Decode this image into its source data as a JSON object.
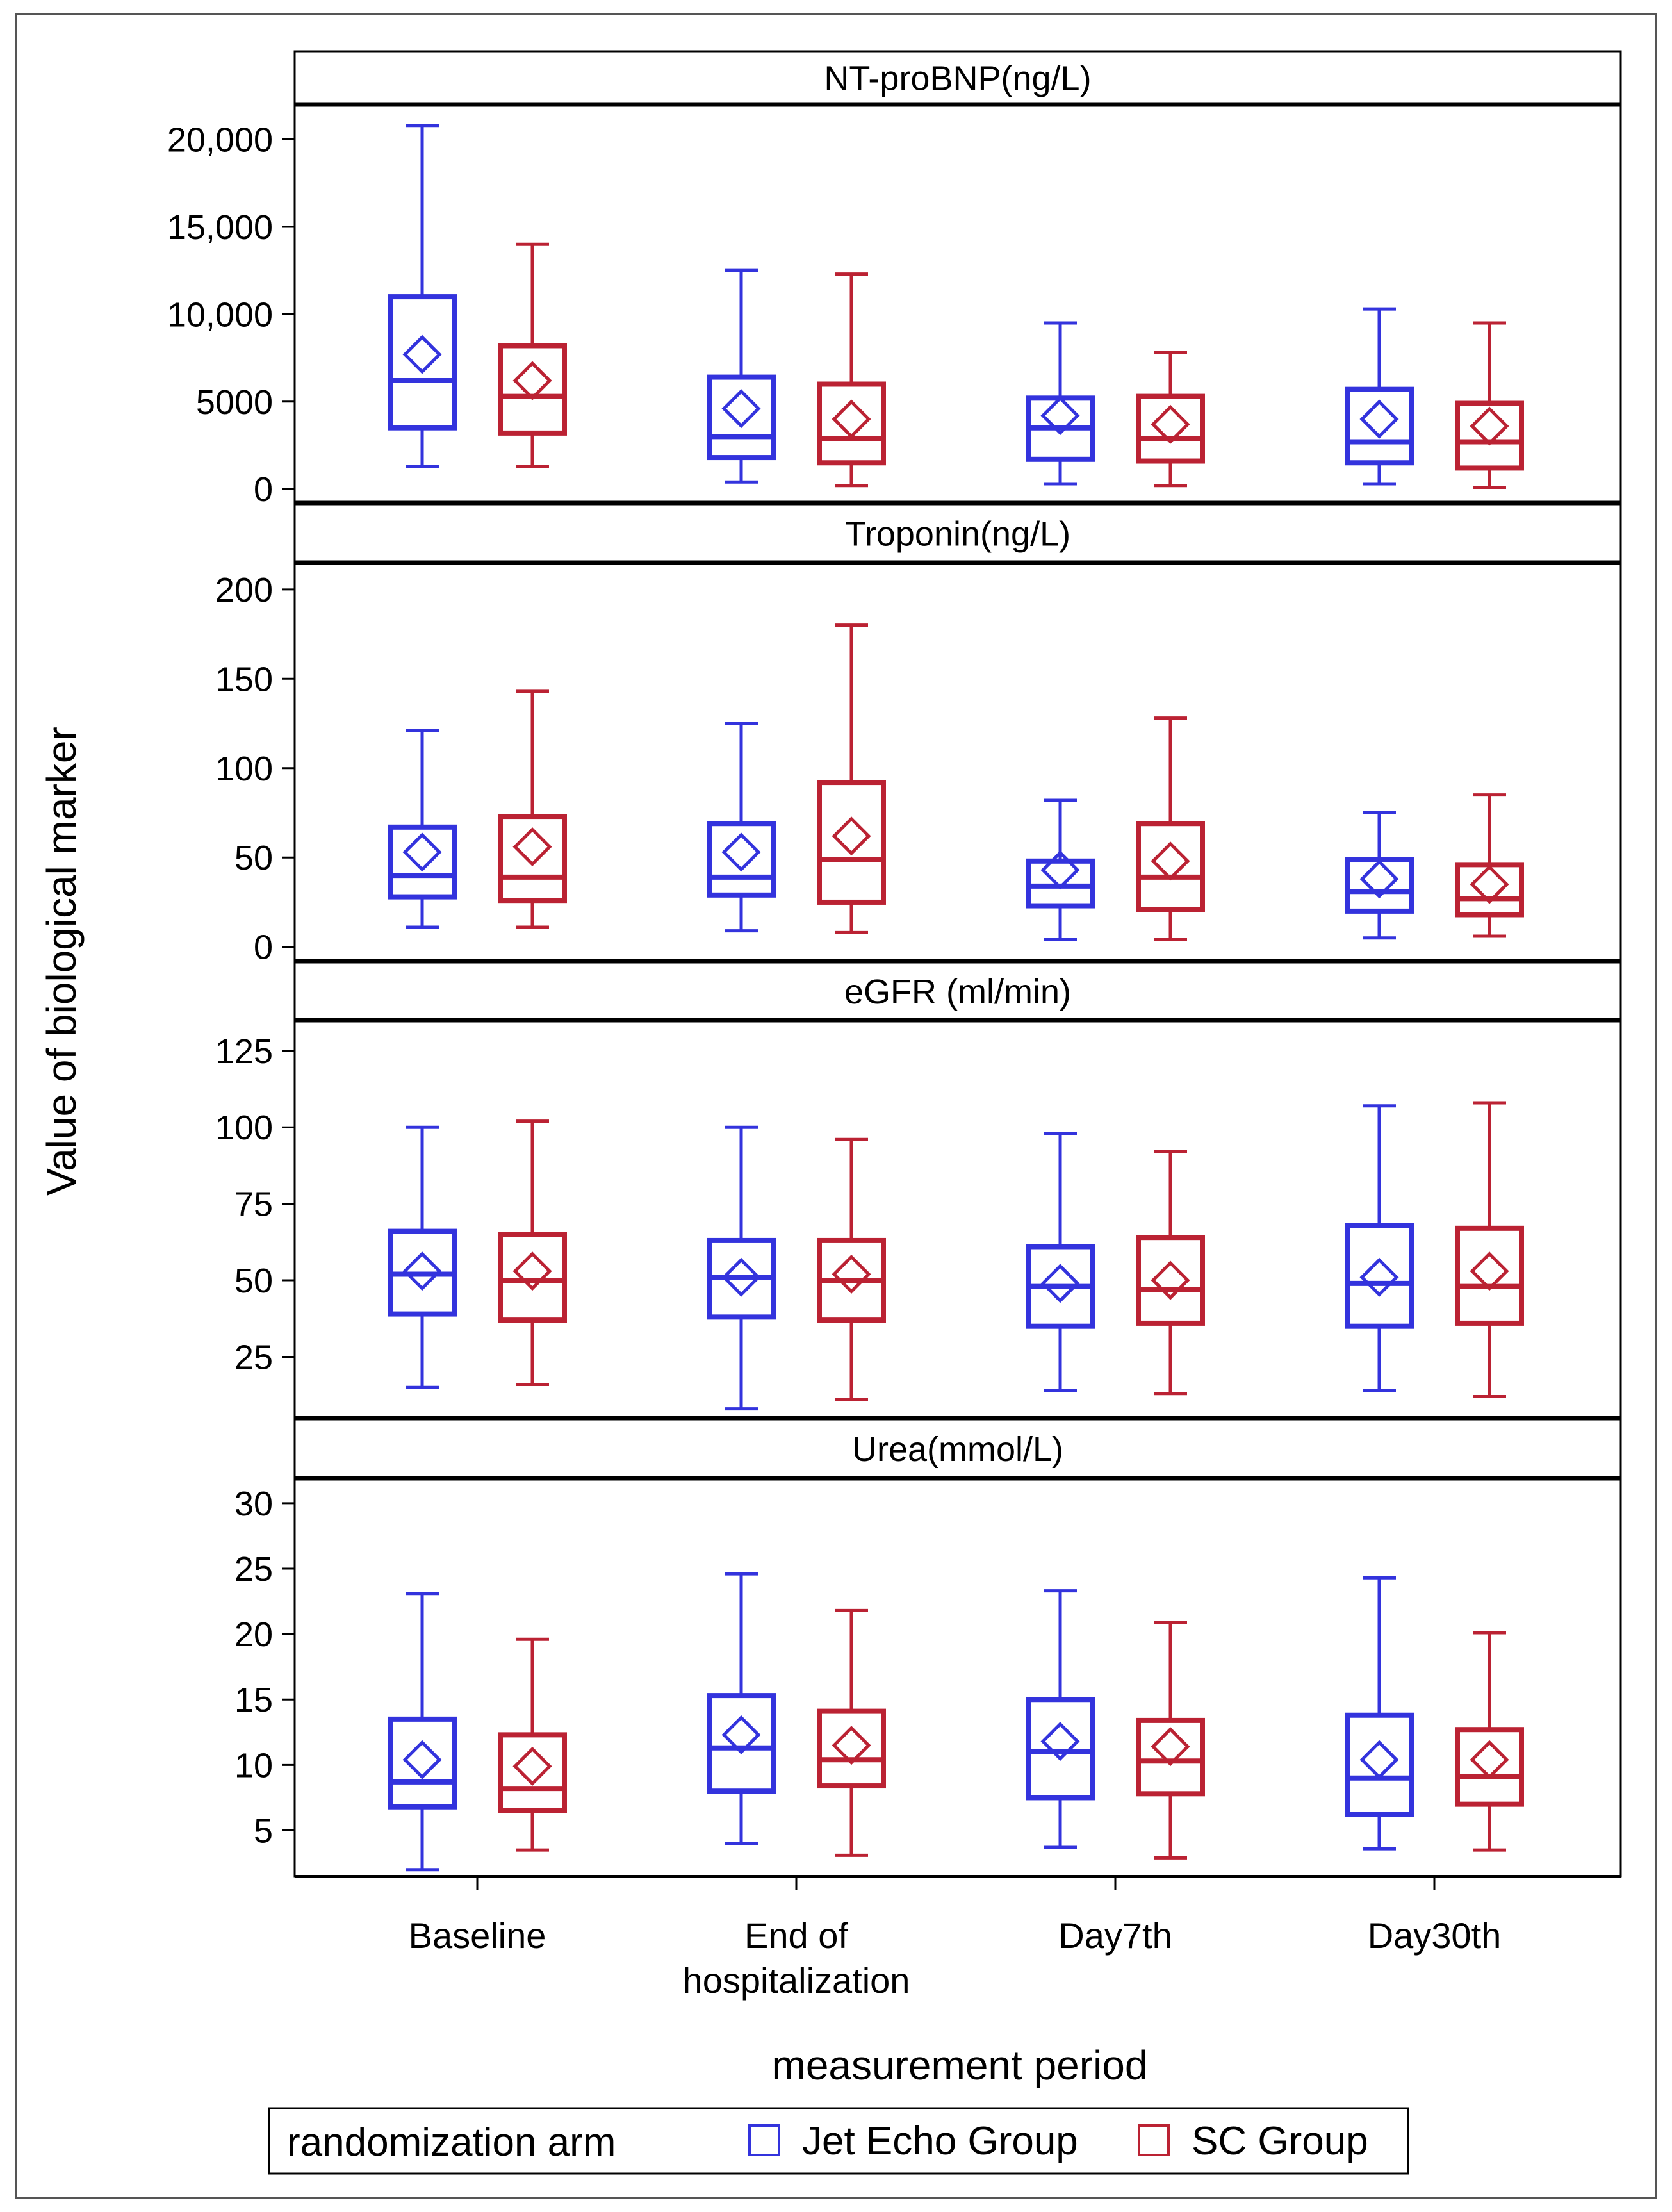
{
  "chart_data": {
    "type": "box",
    "ylabel": "Value of biological marker",
    "xlabel": "measurement period",
    "categories": [
      [
        "Baseline"
      ],
      [
        "End of",
        "hospitalization"
      ],
      [
        "Day7th"
      ],
      [
        "Day30th"
      ]
    ],
    "legend": {
      "title": "randomization arm",
      "placement": "bottom",
      "entries": [
        {
          "name": "Jet Echo Group",
          "color": "#3333dd"
        },
        {
          "name": "SC Group",
          "color": "#bb2233"
        }
      ]
    },
    "panels": [
      {
        "title": "NT-proBNP(ng/L)",
        "ylim": [
          -800,
          22000
        ],
        "ticks": [
          0,
          5000,
          10000,
          15000,
          20000
        ],
        "tick_labels": [
          "0",
          "5000",
          "10,000",
          "15,000",
          "20,000"
        ],
        "series": [
          {
            "name": "Jet Echo Group",
            "boxes": [
              {
                "min": 1300,
                "q1": 3500,
                "median": 6200,
                "q3": 11000,
                "max": 20800,
                "mean": 7700
              },
              {
                "min": 400,
                "q1": 1800,
                "median": 3000,
                "q3": 6400,
                "max": 12500,
                "mean": 4600
              },
              {
                "min": 300,
                "q1": 1700,
                "median": 3500,
                "q3": 5200,
                "max": 9500,
                "mean": 4200
              },
              {
                "min": 300,
                "q1": 1500,
                "median": 2700,
                "q3": 5700,
                "max": 10300,
                "mean": 4000
              }
            ]
          },
          {
            "name": "SC Group",
            "boxes": [
              {
                "min": 1300,
                "q1": 3200,
                "median": 5300,
                "q3": 8200,
                "max": 14000,
                "mean": 6200
              },
              {
                "min": 200,
                "q1": 1500,
                "median": 2900,
                "q3": 6000,
                "max": 12300,
                "mean": 4000
              },
              {
                "min": 200,
                "q1": 1600,
                "median": 2900,
                "q3": 5300,
                "max": 7800,
                "mean": 3700
              },
              {
                "min": 100,
                "q1": 1200,
                "median": 2700,
                "q3": 4900,
                "max": 9500,
                "mean": 3600
              }
            ]
          }
        ]
      },
      {
        "title": "Troponin(ng/L)",
        "ylim": [
          -8,
          215
        ],
        "ticks": [
          0,
          50,
          100,
          150,
          200
        ],
        "tick_labels": [
          "0",
          "50",
          "100",
          "150",
          "200"
        ],
        "series": [
          {
            "name": "Jet Echo Group",
            "boxes": [
              {
                "min": 11,
                "q1": 28,
                "median": 40,
                "q3": 67,
                "max": 121,
                "mean": 53
              },
              {
                "min": 9,
                "q1": 29,
                "median": 39,
                "q3": 69,
                "max": 125,
                "mean": 53
              },
              {
                "min": 4,
                "q1": 23,
                "median": 34,
                "q3": 48,
                "max": 82,
                "mean": 43
              },
              {
                "min": 5,
                "q1": 20,
                "median": 31,
                "q3": 49,
                "max": 75,
                "mean": 38
              }
            ]
          },
          {
            "name": "SC Group",
            "boxes": [
              {
                "min": 11,
                "q1": 26,
                "median": 39,
                "q3": 73,
                "max": 143,
                "mean": 56
              },
              {
                "min": 8,
                "q1": 25,
                "median": 49,
                "q3": 92,
                "max": 180,
                "mean": 62
              },
              {
                "min": 4,
                "q1": 21,
                "median": 39,
                "q3": 69,
                "max": 128,
                "mean": 48
              },
              {
                "min": 6,
                "q1": 18,
                "median": 27,
                "q3": 46,
                "max": 85,
                "mean": 35
              }
            ]
          }
        ]
      },
      {
        "title": "eGFR (ml/min)",
        "ylim": [
          5,
          135
        ],
        "ticks": [
          25,
          50,
          75,
          100,
          125
        ],
        "tick_labels": [
          "25",
          "50",
          "75",
          "100",
          "125"
        ],
        "series": [
          {
            "name": "Jet Echo Group",
            "boxes": [
              {
                "min": 15,
                "q1": 39,
                "median": 52,
                "q3": 66,
                "max": 100,
                "mean": 53
              },
              {
                "min": 8,
                "q1": 38,
                "median": 51,
                "q3": 63,
                "max": 100,
                "mean": 51
              },
              {
                "min": 14,
                "q1": 35,
                "median": 48,
                "q3": 61,
                "max": 98,
                "mean": 49
              },
              {
                "min": 14,
                "q1": 35,
                "median": 49,
                "q3": 68,
                "max": 107,
                "mean": 51
              }
            ]
          },
          {
            "name": "SC Group",
            "boxes": [
              {
                "min": 16,
                "q1": 37,
                "median": 50,
                "q3": 65,
                "max": 102,
                "mean": 53
              },
              {
                "min": 11,
                "q1": 37,
                "median": 50,
                "q3": 63,
                "max": 96,
                "mean": 52
              },
              {
                "min": 13,
                "q1": 36,
                "median": 47,
                "q3": 64,
                "max": 92,
                "mean": 50
              },
              {
                "min": 12,
                "q1": 36,
                "median": 48,
                "q3": 67,
                "max": 108,
                "mean": 53
              }
            ]
          }
        ]
      },
      {
        "title": "Urea(mmol/L)",
        "ylim": [
          1.5,
          31.9
        ],
        "ticks": [
          5,
          10,
          15,
          20,
          25,
          30
        ],
        "tick_labels": [
          "5",
          "10",
          "15",
          "20",
          "25",
          "30"
        ],
        "series": [
          {
            "name": "Jet Echo Group",
            "boxes": [
              {
                "min": 2,
                "q1": 6.8,
                "median": 8.7,
                "q3": 13.5,
                "max": 23.1,
                "mean": 10.4
              },
              {
                "min": 4,
                "q1": 8,
                "median": 11.3,
                "q3": 15.3,
                "max": 24.6,
                "mean": 12.3
              },
              {
                "min": 3.7,
                "q1": 7.5,
                "median": 11,
                "q3": 15,
                "max": 23.3,
                "mean": 11.8
              },
              {
                "min": 3.6,
                "q1": 6.2,
                "median": 9,
                "q3": 13.8,
                "max": 24.3,
                "mean": 10.4
              }
            ]
          },
          {
            "name": "SC Group",
            "boxes": [
              {
                "min": 3.5,
                "q1": 6.5,
                "median": 8.2,
                "q3": 12.3,
                "max": 19.6,
                "mean": 9.9
              },
              {
                "min": 3.1,
                "q1": 8.4,
                "median": 10.4,
                "q3": 14.1,
                "max": 21.8,
                "mean": 11.5
              },
              {
                "min": 2.9,
                "q1": 7.8,
                "median": 10.3,
                "q3": 13.4,
                "max": 20.9,
                "mean": 11.4
              },
              {
                "min": 3.5,
                "q1": 7,
                "median": 9.1,
                "q3": 12.7,
                "max": 20.1,
                "mean": 10.4
              }
            ]
          }
        ]
      }
    ]
  }
}
